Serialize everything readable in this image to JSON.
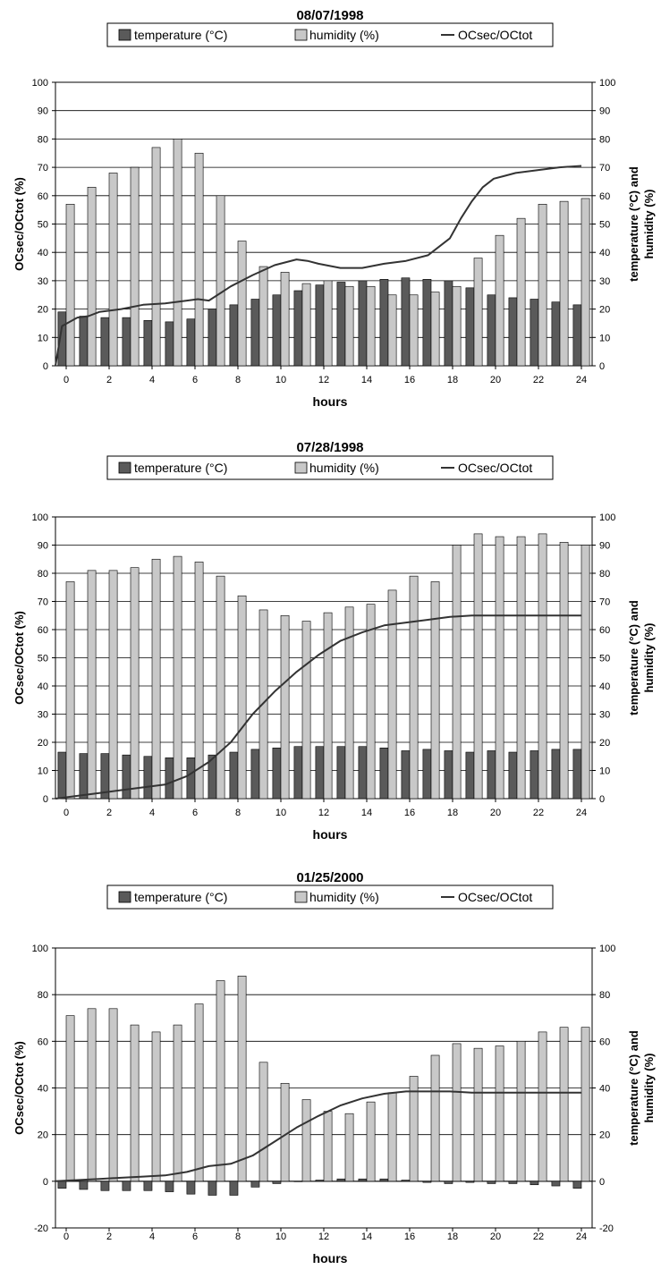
{
  "legend": {
    "temperature_label": "temperature (°C)",
    "humidity_label": "humidity (%)",
    "ratio_label": "OCsec/OCtot"
  },
  "axis_text": {
    "left_ylabel": "OCsec/OCtot (%)",
    "right_ylabel_line1": "temperature (°C) and",
    "right_ylabel_line2": "humidity (%)",
    "xlabel": "hours"
  },
  "colors": {
    "temperature": "#5a5a5a",
    "humidity": "#c8c8c8",
    "line": "#333333",
    "grid": "#000000"
  },
  "chart_data": [
    {
      "type": "bar",
      "title": "08/07/1998",
      "xlabel": "hours",
      "ylabel": "OCsec/OCtot (%)",
      "y2label": "temperature (°C) and humidity (%)",
      "x": [
        0,
        1,
        2,
        3,
        4,
        5,
        6,
        7,
        8,
        9,
        10,
        11,
        12,
        13,
        14,
        15,
        16,
        17,
        18,
        19,
        20,
        21,
        22,
        23,
        24
      ],
      "x_ticks": [
        "0",
        "2",
        "4",
        "6",
        "8",
        "10",
        "12",
        "14",
        "16",
        "18",
        "20",
        "22",
        "24"
      ],
      "ylim": [
        0,
        100
      ],
      "y_ticks": [
        "0",
        "10",
        "20",
        "30",
        "40",
        "50",
        "60",
        "70",
        "80",
        "90",
        "100"
      ],
      "y_tick_values": [
        0,
        10,
        20,
        30,
        40,
        50,
        60,
        70,
        80,
        90,
        100
      ],
      "grid": true,
      "legend_position": "top",
      "series": [
        {
          "name": "temperature (°C)",
          "kind": "bar",
          "values": [
            19,
            17.5,
            17,
            17,
            16,
            15.5,
            16.5,
            20,
            21.5,
            23.5,
            25,
            26.5,
            28.5,
            29.5,
            30,
            30.5,
            31,
            30.5,
            30,
            27.5,
            25,
            24,
            23.5,
            22.5,
            21.5
          ]
        },
        {
          "name": "humidity (%)",
          "kind": "bar",
          "values": [
            57,
            63,
            68,
            70,
            77,
            80,
            75,
            60,
            44,
            35,
            33,
            29,
            30,
            28,
            28,
            25,
            25,
            26,
            28,
            38,
            46,
            52,
            57,
            58,
            59
          ]
        },
        {
          "name": "OCsec/OCtot",
          "kind": "line",
          "x": [
            0,
            0.3,
            1,
            1.5,
            2,
            3,
            4,
            5,
            6,
            6.5,
            7,
            8,
            9,
            10,
            11,
            11.5,
            12,
            13,
            14,
            15,
            16,
            17,
            18,
            18.5,
            19,
            19.5,
            20,
            20.5,
            21,
            22,
            23,
            24
          ],
          "values": [
            0,
            14,
            17,
            17.5,
            19,
            20,
            21.5,
            22,
            23,
            23.5,
            23,
            28,
            32,
            35.5,
            37.5,
            37,
            36,
            34.5,
            34.5,
            36,
            37,
            39,
            45,
            52,
            58,
            63,
            66,
            67,
            68,
            69,
            70,
            70.5
          ]
        }
      ]
    },
    {
      "type": "bar",
      "title": "07/28/1998",
      "xlabel": "hours",
      "ylabel": "OCsec/OCtot (%)",
      "y2label": "temperature (°C) and humidity (%)",
      "x": [
        0,
        1,
        2,
        3,
        4,
        5,
        6,
        7,
        8,
        9,
        10,
        11,
        12,
        13,
        14,
        15,
        16,
        17,
        18,
        19,
        20,
        21,
        22,
        23,
        24
      ],
      "x_ticks": [
        "0",
        "2",
        "4",
        "6",
        "8",
        "10",
        "12",
        "14",
        "16",
        "18",
        "20",
        "22",
        "24"
      ],
      "ylim": [
        0,
        100
      ],
      "y_ticks": [
        "0",
        "10",
        "20",
        "30",
        "40",
        "50",
        "60",
        "70",
        "80",
        "90",
        "100"
      ],
      "y_tick_values": [
        0,
        10,
        20,
        30,
        40,
        50,
        60,
        70,
        80,
        90,
        100
      ],
      "grid": true,
      "legend_position": "top",
      "series": [
        {
          "name": "temperature (°C)",
          "kind": "bar",
          "values": [
            16.5,
            16,
            16,
            15.5,
            15,
            14.5,
            14.5,
            15.5,
            16.5,
            17.5,
            18,
            18.5,
            18.5,
            18.5,
            18.5,
            18,
            17,
            17.5,
            17,
            16.5,
            17,
            16.5,
            17,
            17.5,
            17.5
          ]
        },
        {
          "name": "humidity (%)",
          "kind": "bar",
          "values": [
            77,
            81,
            81,
            82,
            85,
            86,
            84,
            79,
            72,
            67,
            65,
            63,
            66,
            68,
            69,
            74,
            79,
            77,
            90,
            94,
            93,
            93,
            94,
            91,
            90
          ]
        },
        {
          "name": "OCsec/OCtot",
          "kind": "line",
          "x": [
            0,
            1,
            2,
            3,
            4,
            5,
            6,
            7,
            8,
            9,
            10,
            11,
            12,
            13,
            14,
            15,
            16,
            17,
            18,
            19,
            20,
            21,
            22,
            23,
            24
          ],
          "values": [
            0,
            1,
            2,
            3,
            4,
            5,
            8,
            13,
            20,
            30,
            38,
            45,
            51,
            56,
            59,
            61.5,
            62.5,
            63.5,
            64.5,
            65,
            65,
            65,
            65,
            65,
            65
          ]
        }
      ]
    },
    {
      "type": "bar",
      "title": "01/25/2000",
      "xlabel": "hours",
      "ylabel": "OCsec/OCtot (%)",
      "y2label": "temperature (°C) and humidity (%)",
      "x": [
        0,
        1,
        2,
        3,
        4,
        5,
        6,
        7,
        8,
        9,
        10,
        11,
        12,
        13,
        14,
        15,
        16,
        17,
        18,
        19,
        20,
        21,
        22,
        23,
        24
      ],
      "x_ticks": [
        "0",
        "2",
        "4",
        "6",
        "8",
        "10",
        "12",
        "14",
        "16",
        "18",
        "20",
        "22",
        "24"
      ],
      "ylim": [
        -20,
        100
      ],
      "y_ticks": [
        "-20",
        "0",
        "20",
        "40",
        "60",
        "80",
        "100"
      ],
      "y_tick_values": [
        -20,
        0,
        20,
        40,
        60,
        80,
        100
      ],
      "grid": true,
      "legend_position": "top",
      "series": [
        {
          "name": "temperature (°C)",
          "kind": "bar",
          "values": [
            -3,
            -3.5,
            -4,
            -4,
            -4,
            -4.5,
            -5.5,
            -6,
            -6,
            -2.5,
            -1,
            0,
            0.5,
            1,
            1,
            1,
            0.5,
            -0.5,
            -1,
            -0.5,
            -1,
            -1,
            -1.5,
            -2,
            -3
          ]
        },
        {
          "name": "humidity (%)",
          "kind": "bar",
          "values": [
            71,
            74,
            74,
            67,
            64,
            67,
            76,
            86,
            88,
            51,
            42,
            35,
            30,
            29,
            34,
            38,
            45,
            54,
            59,
            57,
            58,
            60,
            64,
            66,
            66
          ]
        },
        {
          "name": "OCsec/OCtot",
          "kind": "line",
          "x": [
            0,
            1,
            2,
            3,
            4,
            5,
            6,
            7,
            8,
            9,
            10,
            11,
            12,
            13,
            14,
            15,
            16,
            17,
            18,
            19,
            20,
            21,
            22,
            23,
            24
          ],
          "values": [
            0,
            0.5,
            1,
            1.5,
            2,
            2.5,
            4,
            6.5,
            7.5,
            11,
            17,
            23,
            28,
            32.5,
            35.5,
            37.5,
            38.5,
            38.5,
            38.5,
            38,
            38,
            38,
            38,
            38,
            38
          ]
        }
      ]
    }
  ]
}
